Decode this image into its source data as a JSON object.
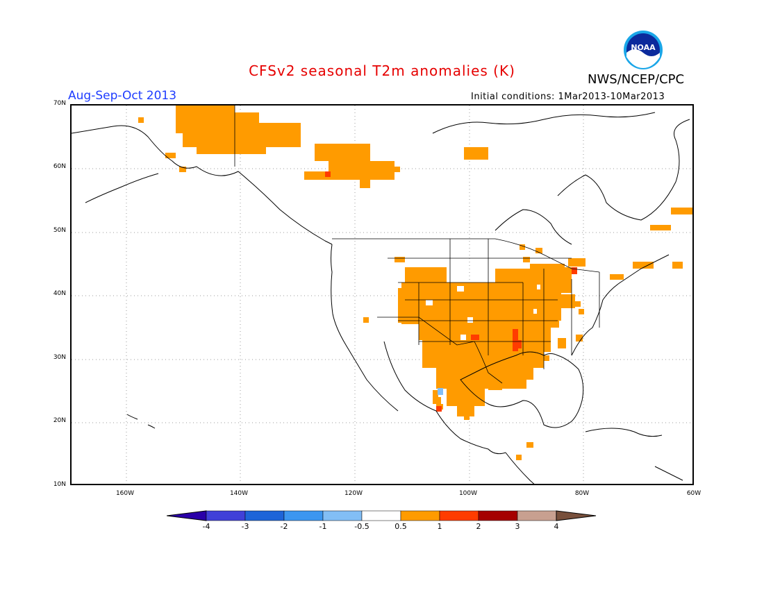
{
  "header": {
    "title": "CFSv2 seasonal T2m anomalies (K)",
    "agency": "NWS/NCEP/CPC",
    "season": "Aug-Sep-Oct 2013",
    "initial_conditions": "Initial conditions: 1Mar2013-10Mar2013",
    "logo_text": "NOAA"
  },
  "map": {
    "lon_range": [
      -172,
      -60
    ],
    "lat_range": [
      10,
      70
    ],
    "lat_labels": [
      "70N",
      "60N",
      "50N",
      "40N",
      "30N",
      "20N",
      "10N"
    ],
    "lon_labels": [
      "160W",
      "140W",
      "120W",
      "100W",
      "80W",
      "60W"
    ],
    "gridlines": "dotted"
  },
  "colorbar": {
    "labels": [
      "-4",
      "-3",
      "-2",
      "-1",
      "-0.5",
      "0.5",
      "1",
      "2",
      "3",
      "4"
    ],
    "colors": [
      "#2a00a8",
      "#4040d8",
      "#1e64d8",
      "#3c96f0",
      "#82bef5",
      "#ffffff",
      "#ff9b00",
      "#ff3c00",
      "#a50000",
      "#c8a090",
      "#78503c"
    ]
  }
}
